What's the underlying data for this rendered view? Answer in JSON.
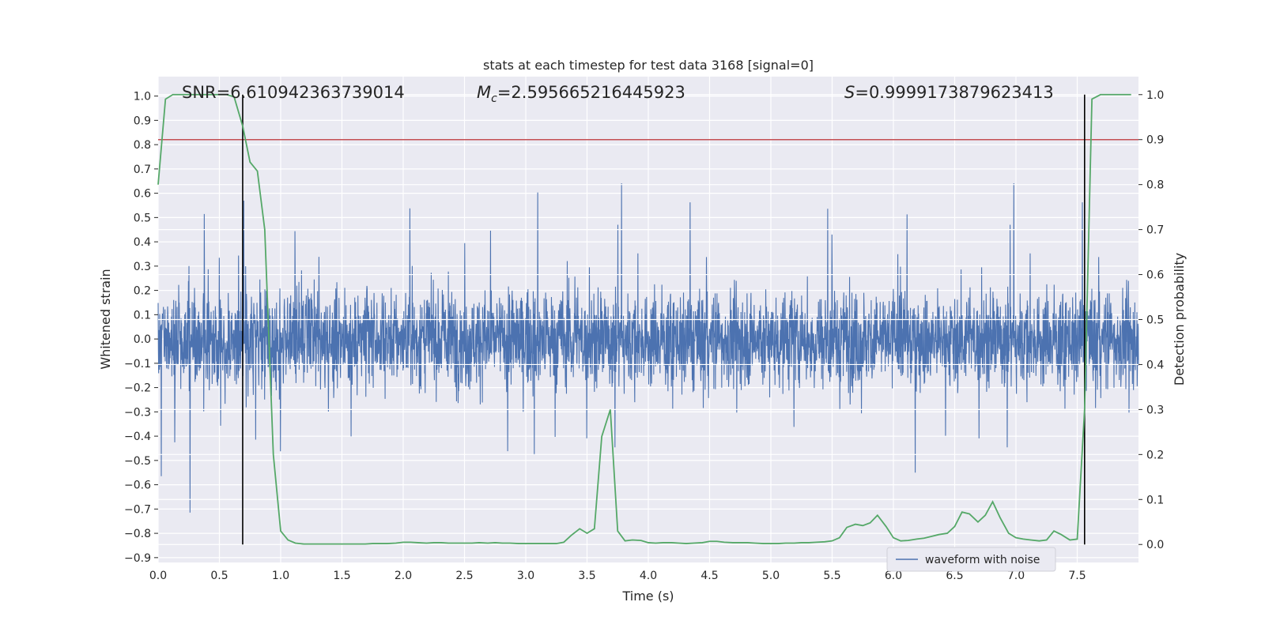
{
  "chart_data": {
    "type": "line",
    "title": "stats at each timestep for test data 3168 [signal=0]",
    "xlabel": "Time (s)",
    "ylabel": "Whitened strain",
    "y2label": "Detection probability",
    "xlim": [
      0.0,
      8.0
    ],
    "ylim": [
      -0.92,
      1.08
    ],
    "y2lim": [
      -0.04,
      1.04
    ],
    "xticks": [
      0.0,
      0.5,
      1.0,
      1.5,
      2.0,
      2.5,
      3.0,
      3.5,
      4.0,
      4.5,
      5.0,
      5.5,
      6.0,
      6.5,
      7.0,
      7.5
    ],
    "xtick_labels": [
      "0.0",
      "0.5",
      "1.0",
      "1.5",
      "2.0",
      "2.5",
      "3.0",
      "3.5",
      "4.0",
      "4.5",
      "5.0",
      "5.5",
      "6.0",
      "6.5",
      "7.0",
      "7.5"
    ],
    "yticks": [
      -0.9,
      -0.8,
      -0.7,
      -0.6,
      -0.5,
      -0.4,
      -0.3,
      -0.2,
      -0.1,
      0.0,
      0.1,
      0.2,
      0.3,
      0.4,
      0.5,
      0.6,
      0.7,
      0.8,
      0.9,
      1.0
    ],
    "ytick_labels": [
      "−0.9",
      "−0.8",
      "−0.7",
      "−0.6",
      "−0.5",
      "−0.4",
      "−0.3",
      "−0.2",
      "−0.1",
      "0.0",
      "0.1",
      "0.2",
      "0.3",
      "0.4",
      "0.5",
      "0.6",
      "0.7",
      "0.8",
      "0.9",
      "1.0"
    ],
    "y2ticks": [
      0.0,
      0.1,
      0.2,
      0.3,
      0.4,
      0.5,
      0.6,
      0.7,
      0.8,
      0.9,
      1.0
    ],
    "y2tick_labels": [
      "0.0",
      "0.1",
      "0.2",
      "0.3",
      "0.4",
      "0.5",
      "0.6",
      "0.7",
      "0.8",
      "0.9",
      "1.0"
    ],
    "grid": true,
    "legend_position": "bottom-right",
    "annotations": {
      "snr": "SNR=6.610942363739014",
      "mc_symbol": "M",
      "mc_subscript": "c",
      "mc_value": "=2.595665216445923",
      "s_symbol": "S",
      "s_value": "=0.9999173879623413"
    },
    "vlines": [
      0.69,
      7.56
    ],
    "threshold": 0.9,
    "series": [
      {
        "name": "waveform with noise",
        "color": "#4c72b0",
        "axis": "left",
        "note": "dense noisy strain signal, sampled over 0–8 s",
        "x_range": [
          0.0,
          8.0
        ]
      },
      {
        "color": "#55a868",
        "axis": "right",
        "x": [
          0.0,
          0.06,
          0.12,
          0.18,
          0.25,
          0.31,
          0.37,
          0.44,
          0.5,
          0.56,
          0.62,
          0.69,
          0.75,
          0.81,
          0.87,
          0.94,
          1.0,
          1.06,
          1.12,
          1.19,
          1.25,
          1.31,
          1.37,
          1.44,
          1.5,
          1.56,
          1.62,
          1.69,
          1.75,
          1.81,
          1.87,
          1.94,
          2.0,
          2.06,
          2.12,
          2.19,
          2.25,
          2.31,
          2.37,
          2.44,
          2.5,
          2.56,
          2.62,
          2.69,
          2.75,
          2.81,
          2.87,
          2.94,
          3.0,
          3.06,
          3.12,
          3.19,
          3.25,
          3.31,
          3.37,
          3.44,
          3.5,
          3.56,
          3.62,
          3.69,
          3.75,
          3.81,
          3.87,
          3.94,
          4.0,
          4.06,
          4.12,
          4.19,
          4.25,
          4.31,
          4.37,
          4.44,
          4.5,
          4.56,
          4.62,
          4.69,
          4.75,
          4.81,
          4.87,
          4.94,
          5.0,
          5.06,
          5.12,
          5.19,
          5.25,
          5.31,
          5.37,
          5.44,
          5.5,
          5.56,
          5.62,
          5.69,
          5.75,
          5.81,
          5.87,
          5.94,
          6.0,
          6.06,
          6.12,
          6.19,
          6.25,
          6.31,
          6.37,
          6.44,
          6.5,
          6.56,
          6.62,
          6.69,
          6.75,
          6.81,
          6.87,
          6.94,
          7.0,
          7.06,
          7.12,
          7.19,
          7.25,
          7.31,
          7.37,
          7.44,
          7.5,
          7.56,
          7.62,
          7.69,
          7.75,
          7.81,
          7.87,
          7.94
        ],
        "values": [
          0.8,
          0.99,
          1.0,
          1.0,
          1.0,
          1.0,
          1.0,
          1.0,
          1.0,
          1.0,
          0.995,
          0.93,
          0.85,
          0.83,
          0.7,
          0.2,
          0.03,
          0.01,
          0.003,
          0.001,
          0.001,
          0.001,
          0.001,
          0.001,
          0.001,
          0.001,
          0.001,
          0.001,
          0.002,
          0.002,
          0.002,
          0.003,
          0.005,
          0.005,
          0.004,
          0.003,
          0.004,
          0.004,
          0.003,
          0.003,
          0.003,
          0.003,
          0.004,
          0.003,
          0.004,
          0.003,
          0.003,
          0.002,
          0.002,
          0.002,
          0.002,
          0.002,
          0.002,
          0.005,
          0.02,
          0.035,
          0.025,
          0.035,
          0.24,
          0.3,
          0.03,
          0.008,
          0.01,
          0.009,
          0.004,
          0.003,
          0.004,
          0.004,
          0.003,
          0.002,
          0.003,
          0.004,
          0.007,
          0.007,
          0.005,
          0.004,
          0.004,
          0.004,
          0.003,
          0.002,
          0.002,
          0.002,
          0.003,
          0.003,
          0.004,
          0.004,
          0.005,
          0.006,
          0.008,
          0.015,
          0.038,
          0.045,
          0.042,
          0.048,
          0.065,
          0.04,
          0.015,
          0.008,
          0.009,
          0.012,
          0.014,
          0.018,
          0.022,
          0.025,
          0.04,
          0.072,
          0.068,
          0.05,
          0.065,
          0.095,
          0.06,
          0.025,
          0.015,
          0.012,
          0.01,
          0.008,
          0.01,
          0.03,
          0.022,
          0.01,
          0.012,
          0.3,
          0.99,
          1.0,
          1.0,
          1.0,
          1.0,
          1.0
        ]
      }
    ]
  }
}
